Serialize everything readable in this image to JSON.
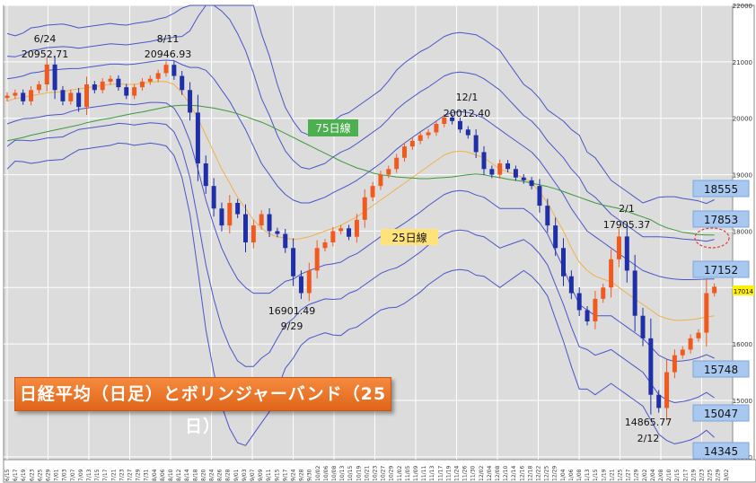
{
  "chart_data": {
    "type": "candlestick",
    "title": "日経平均（日足）とボリンジャーバンド（25日）",
    "y_ticks": [
      22000,
      21000,
      20000,
      19000,
      18000,
      17000,
      16000,
      15000,
      14000
    ],
    "ylim": [
      13950,
      22000
    ],
    "x_tick_labels": [
      "6/15",
      "6/17",
      "6/19",
      "6/23",
      "6/25",
      "6/29",
      "7/01",
      "7/03",
      "7/07",
      "7/09",
      "7/13",
      "7/15",
      "7/17",
      "7/21",
      "7/23",
      "7/27",
      "7/29",
      "7/31",
      "8/04",
      "8/06",
      "8/10",
      "8/12",
      "8/14",
      "8/18",
      "8/20",
      "8/24",
      "8/26",
      "8/28",
      "9/01",
      "9/03",
      "9/07",
      "9/09",
      "9/11",
      "9/15",
      "9/17",
      "9/24",
      "9/28",
      "9/30",
      "10/02",
      "10/06",
      "10/08",
      "10/13",
      "10/15",
      "10/19",
      "10/21",
      "10/23",
      "10/27",
      "10/29",
      "11/02",
      "11/05",
      "11/09",
      "11/11",
      "11/13",
      "11/17",
      "11/19",
      "11/24",
      "11/26",
      "11/30",
      "12/02",
      "12/04",
      "12/08",
      "12/10",
      "12/14",
      "12/16",
      "12/18",
      "12/22",
      "12/25",
      "12/29",
      "1/04",
      "1/06",
      "1/08",
      "1/13",
      "1/15",
      "1/19",
      "1/21",
      "1/25",
      "1/27",
      "1/29",
      "2/02",
      "2/04",
      "2/08",
      "2/10",
      "2/15",
      "2/17",
      "2/19",
      "2/23",
      "2/25",
      "2/29",
      "3/02"
    ],
    "grid": true,
    "series": [
      {
        "name": "価格",
        "values": [
          20400,
          20450,
          20300,
          20500,
          20600,
          20952.71,
          20500,
          20300,
          20450,
          20200,
          20600,
          20500,
          20650,
          20700,
          20550,
          20400,
          20550,
          20650,
          20700,
          20800,
          20946.93,
          20750,
          20500,
          20100,
          19200,
          18800,
          18400,
          18100,
          18500,
          18300,
          17800,
          18100,
          18300,
          18000,
          17950,
          17700,
          17200,
          16901.49,
          17300,
          17700,
          17800,
          18000,
          18050,
          17900,
          18200,
          18600,
          18800,
          19000,
          19100,
          19300,
          19500,
          19600,
          19700,
          19750,
          19900,
          20012.4,
          19950,
          19800,
          19700,
          19400,
          19100,
          19000,
          19200,
          19100,
          18950,
          18900,
          18800,
          18450,
          18100,
          17700,
          17200,
          16900,
          16600,
          16400,
          16800,
          17000,
          17500,
          17905.37,
          17300,
          16500,
          16100,
          15100,
          14865.77,
          15500,
          15800,
          15900,
          16100,
          16200,
          16900,
          17014
        ]
      },
      {
        "name": "25日線",
        "values": [
          20300,
          20350,
          20370,
          20400,
          20420,
          20450,
          20460,
          20470,
          20500,
          20520,
          20540,
          20560,
          20580,
          20600,
          20610,
          20600,
          20600,
          20620,
          20640,
          20650,
          20650,
          20600,
          20450,
          20250,
          20000,
          19700,
          19400,
          19100,
          18850,
          18600,
          18400,
          18200,
          18050,
          17950,
          17900,
          17880,
          17850,
          17870,
          17900,
          17950,
          18000,
          18050,
          18100,
          18180,
          18250,
          18350,
          18450,
          18550,
          18650,
          18750,
          18850,
          18950,
          19050,
          19150,
          19250,
          19350,
          19400,
          19420,
          19400,
          19350,
          19300,
          19200,
          19100,
          19050,
          19000,
          18950,
          18850,
          18700,
          18500,
          18250,
          18000,
          17700,
          17450,
          17300,
          17200,
          17150,
          17100,
          17000,
          16900,
          16800,
          16700,
          16600,
          16500,
          16450,
          16420,
          16420,
          16430,
          16450,
          16480,
          16500
        ]
      },
      {
        "name": "75日線",
        "values": [
          19600,
          19630,
          19660,
          19700,
          19730,
          19760,
          19790,
          19820,
          19850,
          19880,
          19920,
          19950,
          19980,
          20000,
          20030,
          20060,
          20090,
          20110,
          20140,
          20170,
          20200,
          20220,
          20230,
          20230,
          20220,
          20200,
          20180,
          20150,
          20120,
          20080,
          20030,
          19980,
          19930,
          19870,
          19800,
          19730,
          19660,
          19590,
          19520,
          19450,
          19380,
          19310,
          19240,
          19180,
          19120,
          19080,
          19030,
          19000,
          18980,
          18960,
          18950,
          18940,
          18930,
          18930,
          18940,
          18950,
          18960,
          18980,
          19000,
          19010,
          19000,
          18970,
          18950,
          18920,
          18900,
          18880,
          18850,
          18820,
          18790,
          18750,
          18700,
          18650,
          18600,
          18550,
          18500,
          18460,
          18430,
          18400,
          18350,
          18300,
          18250,
          18200,
          18120,
          18060,
          18020,
          17980,
          17960,
          17940,
          17930,
          17930
        ]
      },
      {
        "name": "+1σ",
        "values": [
          20700,
          20720,
          20750,
          20800,
          20820,
          20850,
          20860,
          20870,
          20880,
          20880,
          20900,
          20920,
          20940,
          20960,
          20960,
          20950,
          20960,
          20980,
          21000,
          21020,
          21030,
          21020,
          20950,
          20900,
          20900,
          20850,
          20700,
          20500,
          20300,
          20050,
          19800,
          19500,
          19200,
          19000,
          18800,
          18650,
          18550,
          18500,
          18500,
          18550,
          18600,
          18680,
          18750,
          18820,
          18900,
          19000,
          19100,
          19200,
          19320,
          19450,
          19560,
          19660,
          19760,
          19850,
          19950,
          20050,
          20100,
          20120,
          20100,
          20060,
          20000,
          19900,
          19800,
          19700,
          19600,
          19500,
          19400,
          19250,
          19050,
          18850,
          18650,
          18400,
          18200,
          18000,
          17900,
          17800,
          17700,
          17600,
          17500,
          17400,
          17300,
          17250,
          17200,
          17170,
          17150,
          17140,
          17140,
          17145,
          17150,
          17152
        ]
      },
      {
        "name": "-1σ",
        "values": [
          19900,
          19950,
          19990,
          20000,
          20020,
          20050,
          20060,
          20070,
          20120,
          20160,
          20180,
          20200,
          20220,
          20240,
          20260,
          20250,
          20240,
          20260,
          20280,
          20280,
          20270,
          20180,
          19950,
          19600,
          19100,
          18550,
          18100,
          17700,
          17400,
          17150,
          17000,
          16900,
          16900,
          16900,
          17000,
          17110,
          17150,
          17240,
          17300,
          17350,
          17400,
          17420,
          17450,
          17540,
          17600,
          17700,
          17800,
          17900,
          17980,
          18050,
          18140,
          18240,
          18340,
          18450,
          18550,
          18650,
          18700,
          18720,
          18700,
          18640,
          18600,
          18500,
          18400,
          18400,
          18400,
          18400,
          18300,
          18150,
          17950,
          17650,
          17350,
          17000,
          16700,
          16600,
          16500,
          16500,
          16500,
          16400,
          16300,
          16200,
          16100,
          15950,
          15800,
          15730,
          15690,
          15700,
          15720,
          15755,
          15810,
          15748
        ]
      },
      {
        "name": "+2σ",
        "values": [
          21100,
          21090,
          21130,
          21200,
          21220,
          21250,
          21260,
          21270,
          21260,
          21240,
          21260,
          21280,
          21300,
          21320,
          21310,
          21300,
          21320,
          21340,
          21360,
          21390,
          21410,
          21440,
          21450,
          21550,
          21800,
          22000,
          22000,
          21900,
          21750,
          21500,
          21200,
          20800,
          20350,
          20050,
          19700,
          19420,
          19250,
          19130,
          19100,
          19150,
          19200,
          19310,
          19400,
          19460,
          19550,
          19650,
          19750,
          19850,
          19990,
          20150,
          20270,
          20370,
          20470,
          20550,
          20650,
          20750,
          20800,
          20820,
          20800,
          20770,
          20700,
          20600,
          20500,
          20350,
          20200,
          20050,
          19950,
          19800,
          19600,
          19450,
          19300,
          19100,
          18950,
          18700,
          18600,
          18450,
          18300,
          18200,
          18100,
          18000,
          17900,
          17900,
          17900,
          17890,
          17880,
          17860,
          17850,
          17840,
          17820,
          17853
        ]
      },
      {
        "name": "-2σ",
        "values": [
          19500,
          19610,
          19610,
          19600,
          19620,
          19650,
          19660,
          19670,
          19740,
          19800,
          19820,
          19840,
          19860,
          19880,
          19910,
          19900,
          19880,
          19900,
          19920,
          19910,
          19890,
          19760,
          19450,
          18950,
          18200,
          17400,
          16800,
          16300,
          15950,
          15700,
          15600,
          15600,
          15750,
          15850,
          16100,
          16340,
          16450,
          16610,
          16700,
          16750,
          16800,
          16790,
          16800,
          16900,
          16950,
          17050,
          17150,
          17250,
          17310,
          17350,
          17430,
          17530,
          17630,
          17750,
          17850,
          17950,
          18000,
          18020,
          18000,
          17930,
          17900,
          17800,
          17700,
          17750,
          17800,
          17850,
          17750,
          17600,
          17400,
          17050,
          16700,
          16300,
          15950,
          15900,
          15800,
          15850,
          15900,
          15800,
          15700,
          15600,
          15500,
          15300,
          15100,
          15010,
          14960,
          14980,
          15010,
          15060,
          15140,
          15047
        ]
      },
      {
        "name": "+3σ",
        "values": [
          21500,
          21460,
          21510,
          21600,
          21620,
          21650,
          21660,
          21670,
          21640,
          21600,
          21620,
          21640,
          21660,
          21680,
          21660,
          21650,
          21680,
          21700,
          21720,
          21760,
          21790,
          21860,
          21950,
          22000,
          22000,
          22000,
          22000,
          22000,
          22000,
          22000,
          22000,
          22000,
          21500,
          21100,
          20600,
          20190,
          19950,
          19760,
          19700,
          19750,
          19800,
          19940,
          20050,
          20100,
          20200,
          20300,
          20400,
          20500,
          20660,
          20850,
          20980,
          21080,
          21180,
          21250,
          21350,
          21450,
          21500,
          21520,
          21500,
          21480,
          21400,
          21300,
          21200,
          21000,
          20800,
          20600,
          20500,
          20350,
          20150,
          20050,
          19950,
          19800,
          19700,
          19400,
          19300,
          19100,
          18900,
          18800,
          18700,
          18600,
          18500,
          18550,
          18600,
          18610,
          18610,
          18580,
          18560,
          18535,
          18490,
          18555
        ]
      },
      {
        "name": "-3σ",
        "values": [
          19100,
          19240,
          19230,
          19200,
          19220,
          19250,
          19260,
          19270,
          19360,
          19440,
          19460,
          19480,
          19500,
          19520,
          19560,
          19550,
          19520,
          19540,
          19560,
          19540,
          19510,
          19340,
          18950,
          18300,
          17300,
          16250,
          15500,
          14900,
          14500,
          14250,
          14200,
          14400,
          14600,
          14800,
          15200,
          15570,
          15750,
          15980,
          16100,
          16150,
          16200,
          16160,
          16150,
          16260,
          16300,
          16400,
          16500,
          16600,
          16640,
          16650,
          16720,
          16820,
          16920,
          17050,
          17150,
          17250,
          17300,
          17320,
          17300,
          17220,
          17200,
          17100,
          17000,
          17100,
          17200,
          17300,
          17200,
          17050,
          16850,
          16450,
          16050,
          15600,
          15200,
          15200,
          15100,
          15200,
          15300,
          15200,
          15100,
          15000,
          14900,
          14650,
          14400,
          14290,
          14230,
          14260,
          14300,
          14365,
          14470,
          14345
        ]
      }
    ],
    "annotations": [
      {
        "date": "6/24",
        "value": "20952.71"
      },
      {
        "date": "8/11",
        "value": "20946.93"
      },
      {
        "date": "12/1",
        "value": "20012.40"
      },
      {
        "date": "2/1",
        "value": "17905.37"
      },
      {
        "value": "16901.49",
        "date": "9/29"
      },
      {
        "value": "14865.77",
        "date": "2/12"
      }
    ],
    "ma_labels": {
      "ma75": "75日線",
      "ma25": "25日線"
    },
    "band_labels": [
      "18555",
      "17853",
      "17152",
      "15748",
      "15047",
      "14345"
    ],
    "current_price_label": "17014"
  },
  "colors": {
    "up": "#f05a1e",
    "down": "#1f2fa8",
    "band": "#4a55c8",
    "ma25": "#f2b04a",
    "ma75": "#3a9a3a",
    "label_green": "#4caf50",
    "label_yellow": "#ffe27a",
    "band_label_bg": "#a8c8f0",
    "current_price_bg": "#ffef00",
    "plot_bg": "#dcdcdc",
    "highlight_ellipse": "#e03a3a"
  }
}
